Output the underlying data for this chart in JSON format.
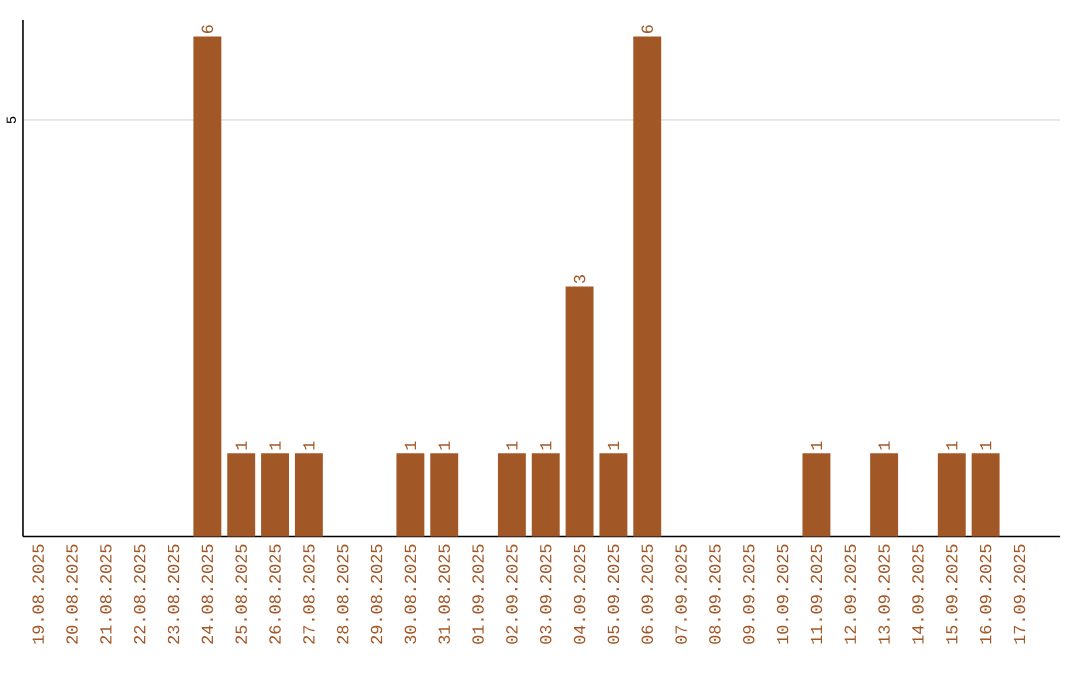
{
  "chart_data": {
    "type": "bar",
    "categories": [
      "19.08.2025",
      "20.08.2025",
      "21.08.2025",
      "22.08.2025",
      "23.08.2025",
      "24.08.2025",
      "25.08.2025",
      "26.08.2025",
      "27.08.2025",
      "28.08.2025",
      "29.08.2025",
      "30.08.2025",
      "31.08.2025",
      "01.09.2025",
      "02.09.2025",
      "03.09.2025",
      "04.09.2025",
      "05.09.2025",
      "06.09.2025",
      "07.09.2025",
      "08.09.2025",
      "09.09.2025",
      "10.09.2025",
      "11.09.2025",
      "12.09.2025",
      "13.09.2025",
      "14.09.2025",
      "15.09.2025",
      "16.09.2025",
      "17.09.2025"
    ],
    "values": [
      null,
      null,
      null,
      null,
      null,
      6,
      1,
      1,
      1,
      null,
      null,
      1,
      1,
      null,
      1,
      1,
      3,
      1,
      6,
      null,
      null,
      null,
      null,
      1,
      null,
      1,
      null,
      1,
      1,
      null
    ],
    "color": "#a25727",
    "ylim": [
      0,
      6.2
    ],
    "yticks": [
      5
    ],
    "grid": "y",
    "data_labels": true
  }
}
